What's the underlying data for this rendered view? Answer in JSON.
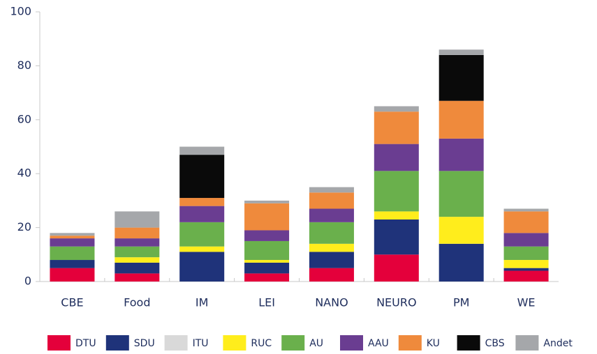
{
  "chart_data": {
    "type": "stacked_bar",
    "categories": [
      "CBE",
      "Food",
      "IM",
      "LEI",
      "NANO",
      "NEURO",
      "PM",
      "WE"
    ],
    "series": [
      {
        "name": "DTU",
        "color": "#e4003b",
        "values": [
          5,
          3,
          0,
          3,
          5,
          10,
          0,
          4
        ]
      },
      {
        "name": "SDU",
        "color": "#1f337a",
        "values": [
          3,
          4,
          11,
          4,
          6,
          13,
          14,
          1
        ]
      },
      {
        "name": "ITU",
        "color": "#d9d9d9",
        "values": [
          0,
          0,
          0,
          0,
          0,
          0,
          0,
          0
        ]
      },
      {
        "name": "RUC",
        "color": "#ffed1c",
        "values": [
          0,
          2,
          2,
          1,
          3,
          3,
          10,
          3
        ]
      },
      {
        "name": "AU",
        "color": "#6ab04c",
        "values": [
          5,
          4,
          9,
          7,
          8,
          15,
          17,
          5
        ]
      },
      {
        "name": "AAU",
        "color": "#6a3d91",
        "values": [
          3,
          3,
          6,
          4,
          5,
          10,
          12,
          5
        ]
      },
      {
        "name": "KU",
        "color": "#ef8a3c",
        "values": [
          1,
          4,
          3,
          10,
          6,
          12,
          14,
          8
        ]
      },
      {
        "name": "CBS",
        "color": "#0a0a0a",
        "values": [
          0,
          0,
          16,
          0,
          0,
          0,
          17,
          0
        ]
      },
      {
        "name": "Andet",
        "color": "#a5a7aa",
        "values": [
          1,
          6,
          3,
          1,
          2,
          2,
          2,
          1
        ]
      }
    ],
    "ylim": [
      0,
      100
    ],
    "yticks": [
      0,
      20,
      40,
      60,
      80,
      100
    ],
    "legend": "bottom"
  }
}
